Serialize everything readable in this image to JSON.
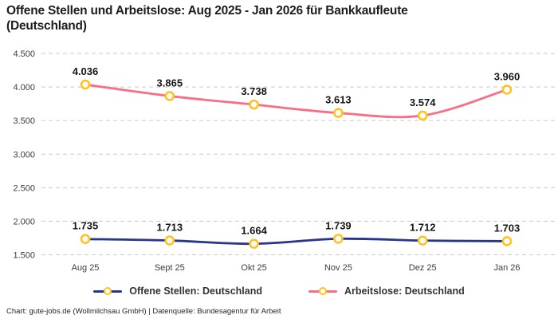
{
  "page": {
    "title": "Offene Stellen und Arbeitslose: Aug 2025 - Jan 2026 für Bankkaufleute (Deutschland)",
    "footer": "Chart: gute-jobs.de (Wollmilchsau GmbH) | Datenquelle: Bundesagentur für Arbeit"
  },
  "chart_data": {
    "type": "line",
    "title": "Offene Stellen und Arbeitslose: Aug 2025 - Jan 2026 für Bankkaufleute (Deutschland)",
    "categories": [
      "Aug 25",
      "Sept 25",
      "Okt 25",
      "Nov 25",
      "Dez 25",
      "Jan 26"
    ],
    "series": [
      {
        "name": "Offene Stellen: Deutschland",
        "values": [
          1735,
          1713,
          1664,
          1739,
          1712,
          1703
        ],
        "value_labels": [
          "1.735",
          "1.713",
          "1.664",
          "1.739",
          "1.712",
          "1.703"
        ],
        "color": "#28358c"
      },
      {
        "name": "Arbeitslose: Deutschland",
        "values": [
          4036,
          3865,
          3738,
          3613,
          3574,
          3960
        ],
        "value_labels": [
          "4.036",
          "3.865",
          "3.738",
          "3.613",
          "3.574",
          "3.960"
        ],
        "color": "#f86e85"
      }
    ],
    "ylim": [
      1500,
      4500
    ],
    "ytick_step": 500,
    "ytick_labels": [
      "1.500",
      "2.000",
      "2.500",
      "3.000",
      "3.500",
      "4.000",
      "4.500"
    ],
    "grid": "horizontal-dashed",
    "gridline_color": "#c9c9c9",
    "legend_position": "bottom",
    "marker": {
      "shape": "circle",
      "fill": "#ffffff",
      "stroke": "#ffc220"
    }
  }
}
